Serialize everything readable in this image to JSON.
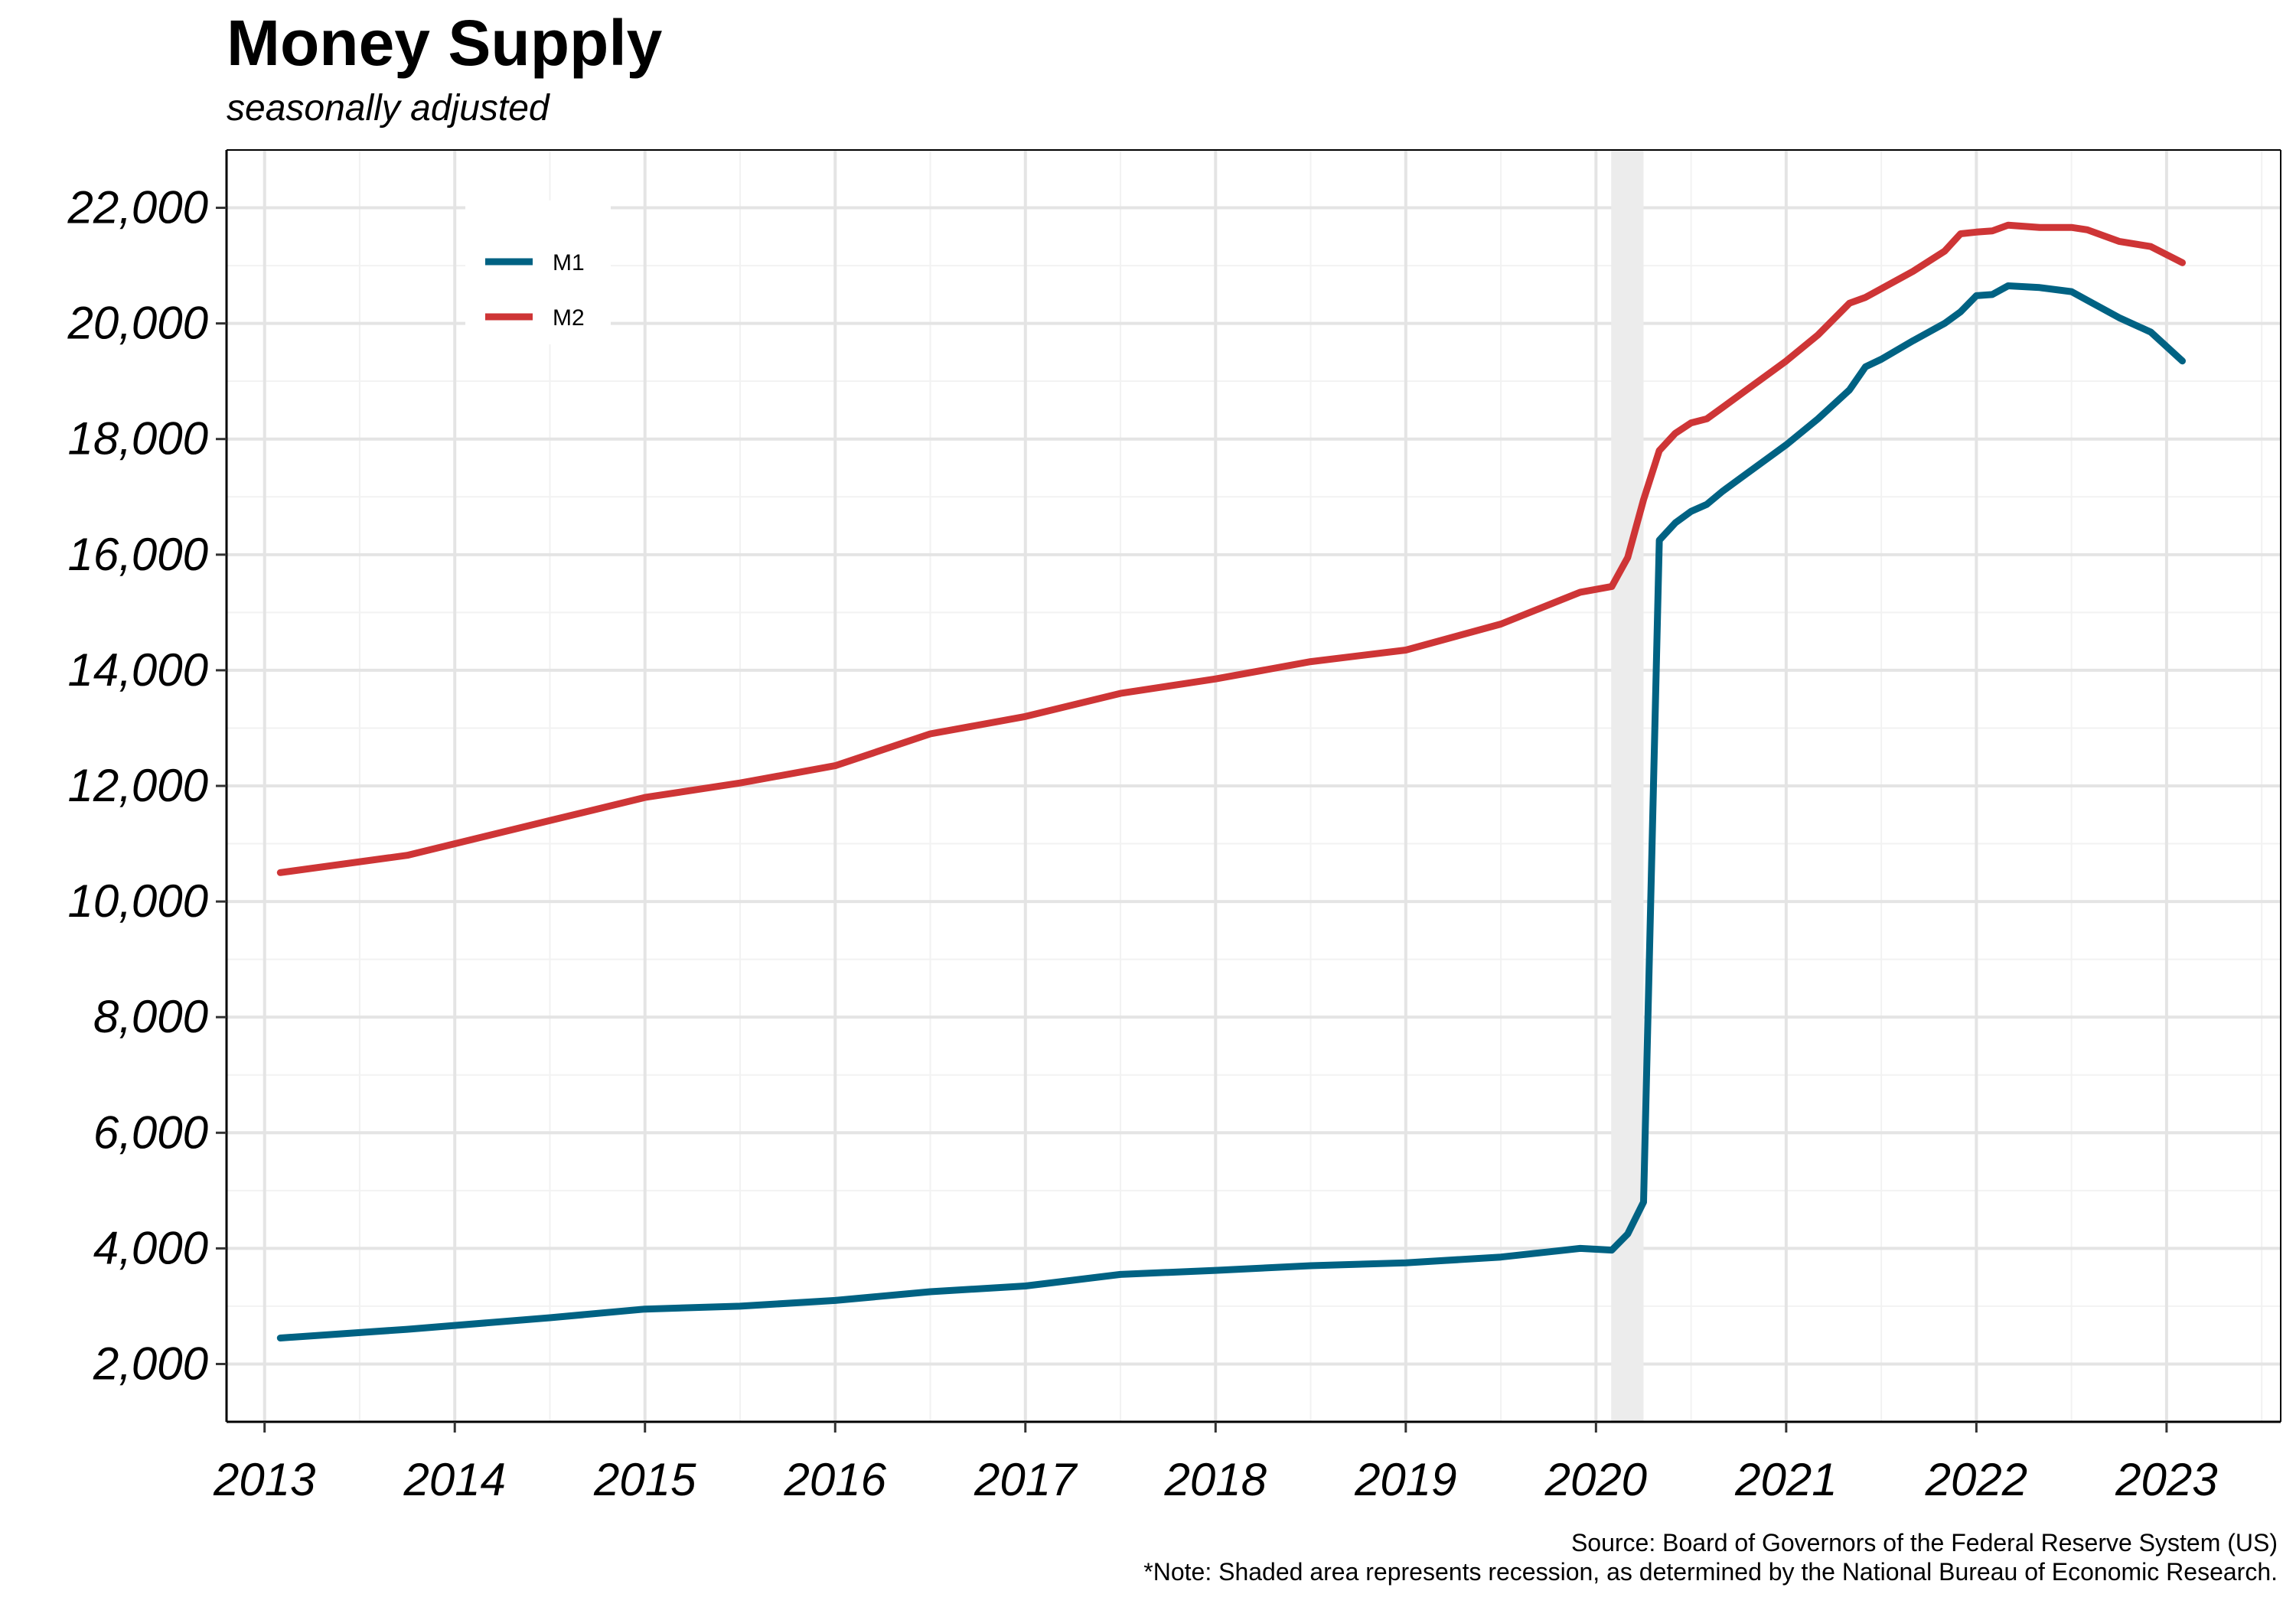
{
  "chart_data": {
    "type": "line",
    "title": "Money Supply",
    "subtitle": "seasonally adjusted",
    "xlabel": "",
    "ylabel": "",
    "x_range": [
      2012.8,
      2023.6
    ],
    "ylim": [
      1000,
      23000
    ],
    "yticks": [
      2000,
      4000,
      6000,
      8000,
      10000,
      12000,
      14000,
      16000,
      18000,
      20000,
      22000
    ],
    "ytick_labels": [
      "2,000",
      "4,000",
      "6,000",
      "8,000",
      "10,000",
      "12,000",
      "14,000",
      "16,000",
      "18,000",
      "20,000",
      "22,000"
    ],
    "xticks": [
      2013,
      2014,
      2015,
      2016,
      2017,
      2018,
      2019,
      2020,
      2021,
      2022,
      2023
    ],
    "xtick_labels": [
      "2013",
      "2014",
      "2015",
      "2016",
      "2017",
      "2018",
      "2019",
      "2020",
      "2021",
      "2022",
      "2023"
    ],
    "grid": true,
    "legend_position": "top-left",
    "recession_shading": {
      "start": 2020.08,
      "end": 2020.25,
      "color": "#ececec"
    },
    "x": [
      2013.083,
      2013.75,
      2014.5,
      2015.0,
      2015.5,
      2016.0,
      2016.5,
      2017.0,
      2017.5,
      2018.0,
      2018.5,
      2019.0,
      2019.5,
      2019.917,
      2020.083,
      2020.167,
      2020.25,
      2020.333,
      2020.417,
      2020.5,
      2020.583,
      2020.667,
      2020.75,
      2020.917,
      2021.0,
      2021.167,
      2021.333,
      2021.417,
      2021.5,
      2021.667,
      2021.833,
      2021.917,
      2022.0,
      2022.083,
      2022.167,
      2022.333,
      2022.5,
      2022.583,
      2022.75,
      2022.917,
      2023.083
    ],
    "series": [
      {
        "name": "M1",
        "color": "#006283",
        "values": [
          2450,
          2600,
          2800,
          2950,
          3000,
          3100,
          3250,
          3350,
          3550,
          3620,
          3700,
          3750,
          3850,
          4000,
          3970,
          4250,
          4800,
          16250,
          16550,
          16750,
          16870,
          17100,
          17300,
          17700,
          17900,
          18350,
          18850,
          19250,
          19380,
          19700,
          20000,
          20200,
          20480,
          20500,
          20650,
          20620,
          20550,
          20400,
          20100,
          19850,
          19350
        ]
      },
      {
        "name": "M2",
        "color": "#ce3536",
        "values": [
          10500,
          10800,
          11400,
          11800,
          12050,
          12350,
          12900,
          13200,
          13600,
          13850,
          14150,
          14350,
          14800,
          15350,
          15450,
          15950,
          16950,
          17800,
          18100,
          18280,
          18350,
          18550,
          18750,
          19150,
          19350,
          19800,
          20350,
          20450,
          20600,
          20900,
          21250,
          21550,
          21580,
          21600,
          21700,
          21660,
          21660,
          21620,
          21420,
          21330,
          21050
        ]
      }
    ],
    "source": "Source: Board of Governors of the Federal Reserve System (US)",
    "note": "*Note: Shaded area represents recession, as determined by the National Bureau of Economic Research."
  }
}
